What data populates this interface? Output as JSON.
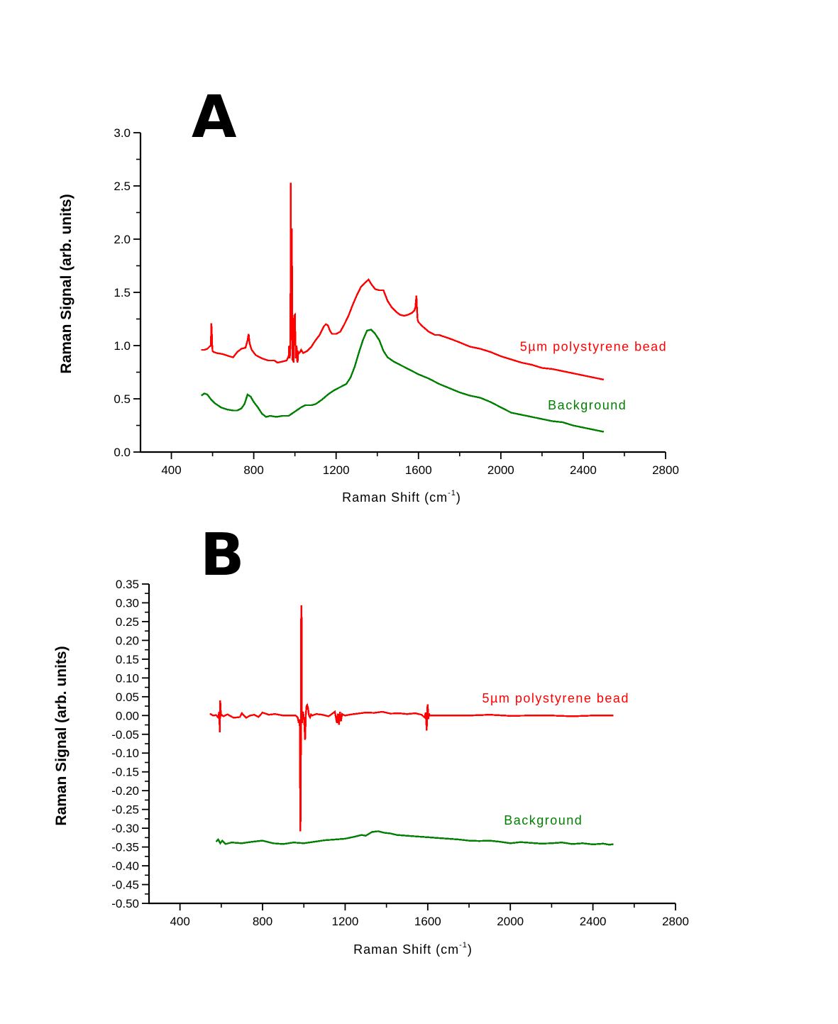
{
  "chart_data": [
    {
      "type": "line",
      "panel_label": "A",
      "title": "",
      "xlabel": "Raman Shift (cm",
      "xlabel_sup": "-1",
      "xlabel_end": ")",
      "ylabel": "Raman Signal (arb. units)",
      "xlim": [
        250,
        2800
      ],
      "ylim": [
        0.0,
        3.0
      ],
      "xticks": [
        400,
        800,
        1200,
        1600,
        2000,
        2400,
        2800
      ],
      "xtick_labels": [
        "400",
        "800",
        "1200",
        "1600",
        "2000",
        "2400",
        "2800"
      ],
      "xminor": [
        600,
        1000,
        1400,
        1800,
        2200,
        2600
      ],
      "yticks": [
        0.0,
        0.5,
        1.0,
        1.5,
        2.0,
        2.5,
        3.0
      ],
      "ytick_labels": [
        "0.0",
        "0.5",
        "1.0",
        "1.5",
        "2.0",
        "2.5",
        "3.0"
      ],
      "yminor": [
        0.25,
        0.75,
        1.25,
        1.75,
        2.25,
        2.75
      ],
      "grid": false,
      "series": [
        {
          "name": "5µm polystyrene bead",
          "label_text": "5µm polystyrene bead",
          "label_anchor": [
            2450,
            0.95
          ],
          "color": "#ff0000",
          "x": [
            545,
            560,
            575,
            585,
            592,
            594,
            596,
            598,
            600,
            605,
            620,
            650,
            680,
            700,
            720,
            740,
            760,
            770,
            775,
            780,
            790,
            810,
            840,
            870,
            900,
            915,
            940,
            960,
            970,
            972,
            975,
            978,
            980,
            982,
            985,
            988,
            990,
            993,
            996,
            1000,
            1004,
            1008,
            1010,
            1013,
            1016,
            1020,
            1025,
            1030,
            1040,
            1060,
            1080,
            1100,
            1120,
            1140,
            1150,
            1160,
            1170,
            1180,
            1200,
            1220,
            1240,
            1260,
            1280,
            1300,
            1320,
            1340,
            1358,
            1370,
            1390,
            1410,
            1430,
            1450,
            1470,
            1490,
            1510,
            1530,
            1550,
            1570,
            1580,
            1585,
            1590,
            1593,
            1596,
            1600,
            1620,
            1650,
            1680,
            1700,
            1730,
            1760,
            1800,
            1850,
            1900,
            1950,
            2000,
            2050,
            2100,
            2150,
            2200,
            2250,
            2300,
            2350,
            2400,
            2450,
            2500
          ],
          "y": [
            0.96,
            0.96,
            0.97,
            0.99,
            1.0,
            1.21,
            1.14,
            1.01,
            0.95,
            0.94,
            0.93,
            0.92,
            0.9,
            0.89,
            0.94,
            0.97,
            0.98,
            1.05,
            1.11,
            1.02,
            0.96,
            0.91,
            0.88,
            0.86,
            0.86,
            0.84,
            0.85,
            0.86,
            0.9,
            1.0,
            0.88,
            1.0,
            2.53,
            1.05,
            2.1,
            0.86,
            0.9,
            0.84,
            1.28,
            1.29,
            0.88,
            1.0,
            0.87,
            0.84,
            0.94,
            0.93,
            0.94,
            0.96,
            0.93,
            0.95,
            0.99,
            1.05,
            1.1,
            1.18,
            1.2,
            1.19,
            1.14,
            1.11,
            1.11,
            1.13,
            1.2,
            1.28,
            1.38,
            1.47,
            1.55,
            1.59,
            1.62,
            1.58,
            1.53,
            1.52,
            1.52,
            1.42,
            1.36,
            1.32,
            1.29,
            1.28,
            1.29,
            1.31,
            1.33,
            1.36,
            1.47,
            1.34,
            1.24,
            1.22,
            1.18,
            1.13,
            1.1,
            1.1,
            1.08,
            1.06,
            1.03,
            0.99,
            0.97,
            0.94,
            0.9,
            0.87,
            0.84,
            0.82,
            0.79,
            0.78,
            0.76,
            0.74,
            0.72,
            0.7,
            0.68
          ]
        },
        {
          "name": "Background",
          "label_text": "Background",
          "label_anchor": [
            2420,
            0.4
          ],
          "color": "#008000",
          "x": [
            545,
            560,
            575,
            590,
            610,
            640,
            670,
            700,
            720,
            740,
            755,
            770,
            785,
            800,
            820,
            840,
            860,
            880,
            910,
            940,
            970,
            1000,
            1030,
            1050,
            1080,
            1100,
            1130,
            1160,
            1190,
            1220,
            1250,
            1270,
            1290,
            1310,
            1330,
            1350,
            1370,
            1390,
            1410,
            1430,
            1450,
            1480,
            1510,
            1550,
            1600,
            1650,
            1700,
            1750,
            1800,
            1850,
            1900,
            1950,
            2000,
            2050,
            2100,
            2150,
            2200,
            2250,
            2300,
            2350,
            2400,
            2450,
            2500
          ],
          "y": [
            0.53,
            0.55,
            0.54,
            0.5,
            0.46,
            0.42,
            0.4,
            0.39,
            0.39,
            0.41,
            0.45,
            0.54,
            0.52,
            0.47,
            0.42,
            0.36,
            0.33,
            0.34,
            0.33,
            0.34,
            0.34,
            0.38,
            0.42,
            0.44,
            0.44,
            0.45,
            0.49,
            0.54,
            0.58,
            0.61,
            0.64,
            0.7,
            0.8,
            0.93,
            1.05,
            1.14,
            1.15,
            1.11,
            1.05,
            0.95,
            0.89,
            0.85,
            0.82,
            0.78,
            0.73,
            0.69,
            0.64,
            0.6,
            0.56,
            0.53,
            0.51,
            0.47,
            0.42,
            0.37,
            0.35,
            0.33,
            0.31,
            0.29,
            0.28,
            0.25,
            0.23,
            0.21,
            0.19
          ]
        }
      ]
    },
    {
      "type": "line",
      "panel_label": "B",
      "title": "",
      "xlabel": "Raman Shift (cm",
      "xlabel_sup": "-1",
      "xlabel_end": ")",
      "ylabel": "Raman Signal (arb. units)",
      "xlim": [
        250,
        2800
      ],
      "ylim": [
        -0.5,
        0.35
      ],
      "xticks": [
        400,
        800,
        1200,
        1600,
        2000,
        2400,
        2800
      ],
      "xtick_labels": [
        "400",
        "800",
        "1200",
        "1600",
        "2000",
        "2400",
        "2800"
      ],
      "xminor": [
        600,
        1000,
        1400,
        1800,
        2200,
        2600
      ],
      "yticks": [
        0.35,
        0.3,
        0.25,
        0.2,
        0.15,
        0.1,
        0.05,
        0.0,
        -0.05,
        -0.1,
        -0.15,
        -0.2,
        -0.25,
        -0.3,
        -0.35,
        -0.4,
        -0.45,
        -0.5
      ],
      "ytick_labels": [
        "0.35",
        "0.30",
        "0.25",
        "0.20",
        "0.15",
        "0.10",
        "0.05",
        "0.00",
        "-0.05",
        "-0.10",
        "-0.15",
        "-0.20",
        "-0.25",
        "-0.30",
        "-0.35",
        "-0.40",
        "-0.45",
        "-0.50"
      ],
      "yminor": [
        0.325,
        0.275,
        0.225,
        0.175,
        0.125,
        0.075,
        0.025,
        -0.025,
        -0.075,
        -0.125,
        -0.175,
        -0.225,
        -0.275,
        -0.325,
        -0.375,
        -0.425,
        -0.475
      ],
      "grid": false,
      "series": [
        {
          "name": "5µm polystyrene bead",
          "label_text": "5µm polystyrene bead",
          "label_anchor": [
            2220,
            0.035
          ],
          "color": "#ff0000",
          "x": [
            545,
            560,
            575,
            585,
            590,
            593,
            595,
            597,
            599,
            602,
            610,
            630,
            660,
            690,
            700,
            720,
            740,
            760,
            780,
            800,
            830,
            860,
            900,
            940,
            960,
            970,
            975,
            980,
            983,
            985,
            987,
            989,
            991,
            993,
            996,
            1000,
            1003,
            1006,
            1010,
            1013,
            1016,
            1020,
            1025,
            1030,
            1035,
            1040,
            1060,
            1090,
            1120,
            1150,
            1160,
            1165,
            1170,
            1175,
            1180,
            1185,
            1190,
            1200,
            1230,
            1260,
            1300,
            1340,
            1380,
            1420,
            1460,
            1500,
            1540,
            1570,
            1585,
            1590,
            1595,
            1598,
            1600,
            1603,
            1606,
            1610,
            1640,
            1700,
            1800,
            1900,
            2000,
            2100,
            2200,
            2300,
            2400,
            2500
          ],
          "y": [
            0.005,
            0.0,
            0.001,
            -0.005,
            0.01,
            -0.045,
            0.04,
            0.015,
            -0.002,
            0.002,
            -0.002,
            0.003,
            -0.006,
            -0.004,
            0.006,
            -0.006,
            0.0,
            0.002,
            -0.004,
            0.008,
            0.002,
            0.004,
            0.0,
            0.0,
            0.0,
            -0.005,
            -0.02,
            -0.01,
            -0.308,
            -0.25,
            0.293,
            0.29,
            -0.02,
            0.005,
            0.01,
            -0.005,
            -0.03,
            -0.065,
            0.005,
            0.025,
            0.028,
            0.02,
            0.0,
            -0.005,
            0.003,
            0.0,
            0.004,
            0.002,
            -0.002,
            0.01,
            -0.02,
            0.005,
            -0.025,
            0.01,
            -0.015,
            0.004,
            0.002,
            0.0,
            0.003,
            0.005,
            0.008,
            0.007,
            0.01,
            0.005,
            0.006,
            0.004,
            0.006,
            0.002,
            -0.005,
            0.008,
            -0.04,
            0.02,
            0.03,
            -0.01,
            0.005,
            0.0,
            0.0,
            0.0,
            0.0,
            0.002,
            -0.001,
            0.0,
            0.0,
            -0.002,
            0.0,
            0.0
          ]
        },
        {
          "name": "Background",
          "label_text": "Background",
          "label_anchor": [
            2160,
            -0.29
          ],
          "color": "#008000",
          "x": [
            575,
            585,
            595,
            605,
            620,
            650,
            700,
            750,
            800,
            850,
            900,
            950,
            1000,
            1050,
            1100,
            1150,
            1200,
            1250,
            1280,
            1300,
            1330,
            1360,
            1390,
            1420,
            1450,
            1500,
            1550,
            1600,
            1650,
            1700,
            1750,
            1800,
            1850,
            1900,
            1950,
            2000,
            2050,
            2100,
            2150,
            2200,
            2250,
            2300,
            2350,
            2400,
            2450,
            2480,
            2500
          ],
          "y": [
            -0.336,
            -0.33,
            -0.34,
            -0.333,
            -0.342,
            -0.338,
            -0.34,
            -0.336,
            -0.333,
            -0.34,
            -0.342,
            -0.338,
            -0.34,
            -0.336,
            -0.332,
            -0.33,
            -0.328,
            -0.322,
            -0.318,
            -0.32,
            -0.31,
            -0.308,
            -0.312,
            -0.314,
            -0.318,
            -0.32,
            -0.322,
            -0.324,
            -0.326,
            -0.328,
            -0.33,
            -0.333,
            -0.334,
            -0.333,
            -0.336,
            -0.34,
            -0.337,
            -0.339,
            -0.341,
            -0.34,
            -0.338,
            -0.342,
            -0.34,
            -0.343,
            -0.341,
            -0.344,
            -0.342
          ]
        }
      ]
    }
  ]
}
